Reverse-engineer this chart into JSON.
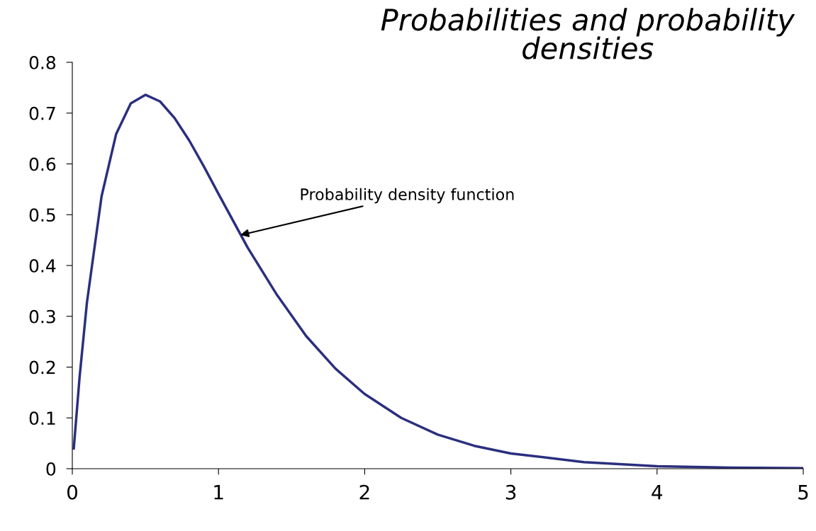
{
  "chart_data": {
    "type": "line",
    "title": "Probabilities and probability\ndensities",
    "x": [
      0.01,
      0.05,
      0.1,
      0.2,
      0.3,
      0.4,
      0.5,
      0.6,
      0.7,
      0.8,
      0.9,
      1.0,
      1.2,
      1.4,
      1.6,
      1.8,
      2.0,
      2.25,
      2.5,
      2.75,
      3.0,
      3.5,
      4.0,
      4.5,
      5.0
    ],
    "series": [
      {
        "color": "#2b2f7e",
        "values": [
          0.04,
          0.181,
          0.327,
          0.536,
          0.659,
          0.719,
          0.736,
          0.723,
          0.69,
          0.646,
          0.595,
          0.541,
          0.435,
          0.342,
          0.261,
          0.197,
          0.147,
          0.1,
          0.067,
          0.045,
          0.03,
          0.013,
          0.005,
          0.002,
          0.001
        ]
      }
    ],
    "annotations": [
      {
        "text": "Probability density function",
        "x": 1.15,
        "y": 0.46
      }
    ],
    "xlim": [
      0,
      5
    ],
    "ylim": [
      0,
      0.8
    ],
    "xticks": [
      0,
      1,
      2,
      3,
      4,
      5
    ],
    "yticks": [
      0,
      0.1,
      0.2,
      0.3,
      0.4,
      0.5,
      0.6,
      0.7,
      0.8
    ],
    "grid": false,
    "legend": false,
    "marker": "none",
    "line_style": "solid"
  }
}
